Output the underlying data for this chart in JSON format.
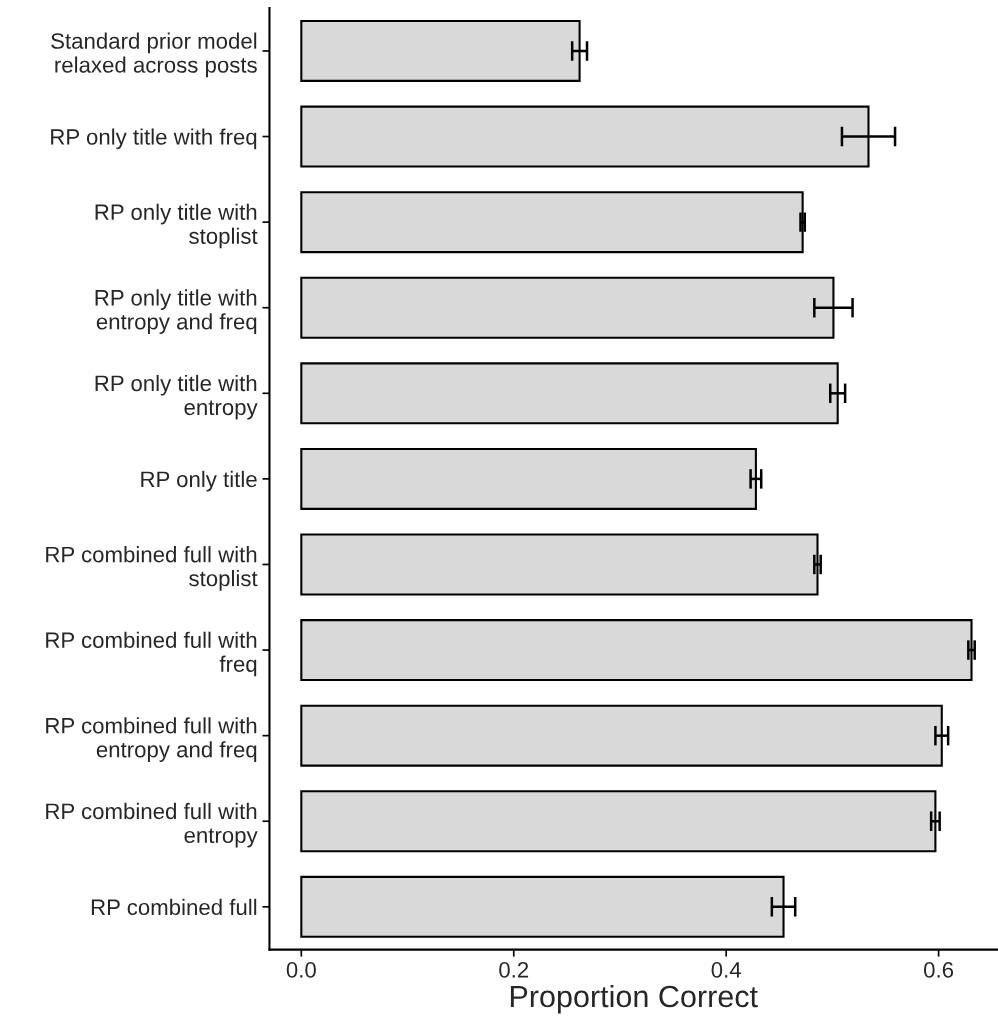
{
  "chart_data": {
    "type": "bar",
    "orientation": "horizontal",
    "xlabel": "Proportion Correct",
    "categories": [
      "Standard prior model\nrelaxed across posts",
      "RP only title with freq",
      "RP only title with\nstoplist",
      "RP only title with\nentropy and freq",
      "RP only title with\nentropy",
      "RP only title",
      "RP combined full with\nstoplist",
      "RP combined full with\nfreq",
      "RP combined full with\nentropy and freq",
      "RP combined full with\nentropy",
      "RP combined full"
    ],
    "values": [
      0.262,
      0.534,
      0.472,
      0.501,
      0.505,
      0.428,
      0.486,
      0.631,
      0.603,
      0.597,
      0.454
    ],
    "errors": [
      0.007,
      0.025,
      0.002,
      0.018,
      0.007,
      0.005,
      0.003,
      0.003,
      0.006,
      0.004,
      0.011
    ],
    "color": "#d9d9d9",
    "xlim": [
      -0.03,
      0.655
    ],
    "xticks": [
      {
        "value": 0,
        "label": "0.0"
      },
      0.2,
      0.4,
      0.6
    ],
    "grid": false,
    "legend": false
  }
}
